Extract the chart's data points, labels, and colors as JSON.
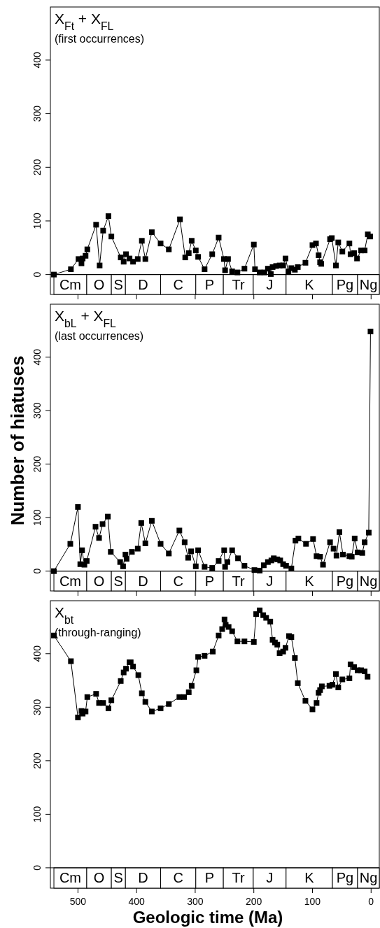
{
  "chart_data": [
    {
      "type": "line",
      "title": "X$_{Ft}$ + X$_{FL}$",
      "subtitle": "(first occurrences)",
      "marker": "square",
      "tick_labels": "y",
      "xlim": [
        547,
        -14
      ],
      "ylim": [
        -37,
        499
      ],
      "xticks": [
        500,
        400,
        300,
        200,
        100,
        0
      ],
      "yticks": [
        0,
        100,
        200,
        300,
        400
      ],
      "x": [
        541,
        512,
        499,
        494,
        492,
        487,
        484,
        469,
        463,
        457,
        448,
        443,
        427,
        422,
        418,
        412,
        406,
        398,
        391,
        385,
        374,
        359,
        345,
        326,
        317,
        311,
        306,
        299,
        295,
        284,
        271,
        260,
        251,
        249,
        244,
        237,
        228,
        216,
        200,
        198,
        190,
        182,
        176,
        171,
        168,
        162,
        156,
        150,
        146,
        141,
        136,
        130,
        125,
        112,
        100,
        94,
        89.5,
        87,
        85,
        70,
        67,
        60,
        56,
        49,
        37,
        35,
        29,
        24,
        17,
        11,
        5.6,
        1.6
      ],
      "series": [
        {
          "color": "#000000",
          "values": [
            0,
            10,
            29,
            21,
            30,
            35,
            47,
            93,
            17,
            82,
            109,
            71,
            32,
            24,
            38,
            30,
            24,
            29,
            63,
            29,
            79,
            58,
            47,
            103,
            32,
            40,
            63,
            45,
            33,
            10,
            38,
            69,
            29,
            8,
            29,
            6,
            4,
            11,
            56,
            10,
            4,
            4,
            11,
            1,
            14,
            16,
            17,
            17,
            30,
            6,
            12,
            9,
            14,
            22,
            55,
            58,
            36,
            23,
            20,
            66,
            68,
            17,
            60,
            43,
            58,
            38,
            40,
            30,
            45,
            45,
            75,
            71
          ]
        }
      ],
      "bands": [
        {
          "axis": "x",
          "from": 541,
          "to": 485,
          "label": "Cm"
        },
        {
          "axis": "x",
          "from": 485,
          "to": 443,
          "label": "O"
        },
        {
          "axis": "x",
          "from": 443,
          "to": 419,
          "label": "S"
        },
        {
          "axis": "x",
          "from": 419,
          "to": 359,
          "label": "D"
        },
        {
          "axis": "x",
          "from": 359,
          "to": 299,
          "label": "C"
        },
        {
          "axis": "x",
          "from": 299,
          "to": 252,
          "label": "P"
        },
        {
          "axis": "x",
          "from": 252,
          "to": 201,
          "label": "Tr"
        },
        {
          "axis": "x",
          "from": 201,
          "to": 145,
          "label": "J"
        },
        {
          "axis": "x",
          "from": 145,
          "to": 66,
          "label": "K"
        },
        {
          "axis": "x",
          "from": 66,
          "to": 23,
          "label": "Pg"
        },
        {
          "axis": "x",
          "from": 23,
          "to": -14,
          "label": "Ng"
        }
      ]
    },
    {
      "type": "line",
      "title": "X$_{bL}$ + X$_{FL}$",
      "subtitle": "(last occurrences)",
      "ylabel": "Number of hiatuses",
      "marker": "square",
      "tick_labels": "y",
      "xlim": [
        547,
        -14
      ],
      "ylim": [
        -37,
        499
      ],
      "xticks": [
        500,
        400,
        300,
        200,
        100,
        0
      ],
      "yticks": [
        0,
        100,
        200,
        300,
        400
      ],
      "x": [
        541,
        513,
        500,
        496,
        493,
        489,
        485,
        470,
        464,
        458,
        449,
        444,
        428,
        423,
        419,
        417,
        408,
        398,
        392,
        385,
        374,
        359,
        345,
        327,
        318,
        312,
        307,
        299,
        295,
        284,
        271,
        260,
        250.6,
        249,
        245,
        237,
        227,
        216,
        199,
        190,
        183,
        176,
        170,
        166,
        160,
        155,
        150,
        145,
        136,
        129,
        124,
        111,
        99,
        93,
        87,
        82,
        70,
        64,
        59,
        54,
        48,
        37,
        33,
        28,
        23,
        15,
        11,
        4,
        1
      ],
      "series": [
        {
          "color": "#000000",
          "values": [
            0,
            51,
            120,
            13,
            39,
            12,
            19,
            83,
            62,
            88,
            102,
            36,
            17,
            9,
            31,
            23,
            36,
            42,
            90,
            52,
            94,
            51,
            33,
            76,
            54,
            25,
            37,
            9,
            39,
            8,
            6,
            19,
            39,
            8,
            17,
            39,
            24,
            10,
            2,
            1,
            11,
            17,
            20,
            24,
            22,
            20,
            13,
            10,
            5,
            57,
            61,
            51,
            60,
            28,
            27,
            12,
            54,
            42,
            29,
            73,
            31,
            28,
            27,
            61,
            35,
            34,
            54,
            72,
            448
          ]
        }
      ],
      "bands": [
        {
          "axis": "x",
          "from": 541,
          "to": 485,
          "label": "Cm"
        },
        {
          "axis": "x",
          "from": 485,
          "to": 443,
          "label": "O"
        },
        {
          "axis": "x",
          "from": 443,
          "to": 419,
          "label": "S"
        },
        {
          "axis": "x",
          "from": 419,
          "to": 359,
          "label": "D"
        },
        {
          "axis": "x",
          "from": 359,
          "to": 299,
          "label": "C"
        },
        {
          "axis": "x",
          "from": 299,
          "to": 252,
          "label": "P"
        },
        {
          "axis": "x",
          "from": 252,
          "to": 201,
          "label": "Tr"
        },
        {
          "axis": "x",
          "from": 201,
          "to": 145,
          "label": "J"
        },
        {
          "axis": "x",
          "from": 145,
          "to": 66,
          "label": "K"
        },
        {
          "axis": "x",
          "from": 66,
          "to": 23,
          "label": "Pg"
        },
        {
          "axis": "x",
          "from": 23,
          "to": -14,
          "label": "Ng"
        }
      ]
    },
    {
      "type": "line",
      "title": "X$_{bt}$",
      "subtitle": "(through-ranging)",
      "xlabel": "Geologic time (Ma)",
      "marker": "square",
      "xlim": [
        547,
        -14
      ],
      "ylim": [
        -38,
        499
      ],
      "xticks": [
        500,
        400,
        300,
        200,
        100,
        0
      ],
      "yticks": [
        0,
        100,
        200,
        300,
        400
      ],
      "x": [
        541,
        512,
        500,
        494,
        492,
        487,
        484,
        469,
        464,
        457,
        448,
        443,
        427,
        422,
        418,
        412,
        410,
        406,
        397,
        391,
        385,
        374,
        359,
        345,
        327,
        319,
        311,
        306,
        298,
        295,
        284,
        270,
        260,
        254,
        250,
        248,
        243,
        237,
        228,
        216,
        200,
        196,
        190,
        184,
        179,
        172,
        168,
        164,
        160,
        156,
        150,
        146,
        140,
        136,
        130,
        125,
        112,
        100,
        93,
        89.5,
        87,
        84,
        71,
        66,
        60,
        56,
        49,
        37,
        35,
        29,
        23,
        17,
        11,
        6
      ],
      "series": [
        {
          "color": "#000000",
          "values": [
            434,
            386,
            281,
            293,
            288,
            292,
            319,
            325,
            308,
            308,
            298,
            313,
            349,
            365,
            372,
            384,
            384,
            376,
            360,
            326,
            310,
            292,
            298,
            306,
            319,
            319,
            328,
            340,
            369,
            394,
            396,
            404,
            434,
            446,
            464,
            454,
            450,
            442,
            423,
            423,
            422,
            474,
            481,
            472,
            467,
            460,
            426,
            421,
            417,
            401,
            404,
            411,
            433,
            431,
            392,
            345,
            312,
            296,
            308,
            327,
            332,
            339,
            340,
            342,
            362,
            337,
            352,
            354,
            380,
            375,
            369,
            369,
            367,
            357
          ]
        }
      ],
      "bands": [
        {
          "axis": "x",
          "from": 541,
          "to": 485,
          "label": "Cm"
        },
        {
          "axis": "x",
          "from": 485,
          "to": 443,
          "label": "O"
        },
        {
          "axis": "x",
          "from": 443,
          "to": 419,
          "label": "S"
        },
        {
          "axis": "x",
          "from": 419,
          "to": 359,
          "label": "D"
        },
        {
          "axis": "x",
          "from": 359,
          "to": 299,
          "label": "C"
        },
        {
          "axis": "x",
          "from": 299,
          "to": 252,
          "label": "P"
        },
        {
          "axis": "x",
          "from": 252,
          "to": 201,
          "label": "Tr"
        },
        {
          "axis": "x",
          "from": 201,
          "to": 145,
          "label": "J"
        },
        {
          "axis": "x",
          "from": 145,
          "to": 66,
          "label": "K"
        },
        {
          "axis": "x",
          "from": 66,
          "to": 23,
          "label": "Pg"
        },
        {
          "axis": "x",
          "from": 23,
          "to": -14,
          "label": "Ng"
        }
      ]
    }
  ]
}
